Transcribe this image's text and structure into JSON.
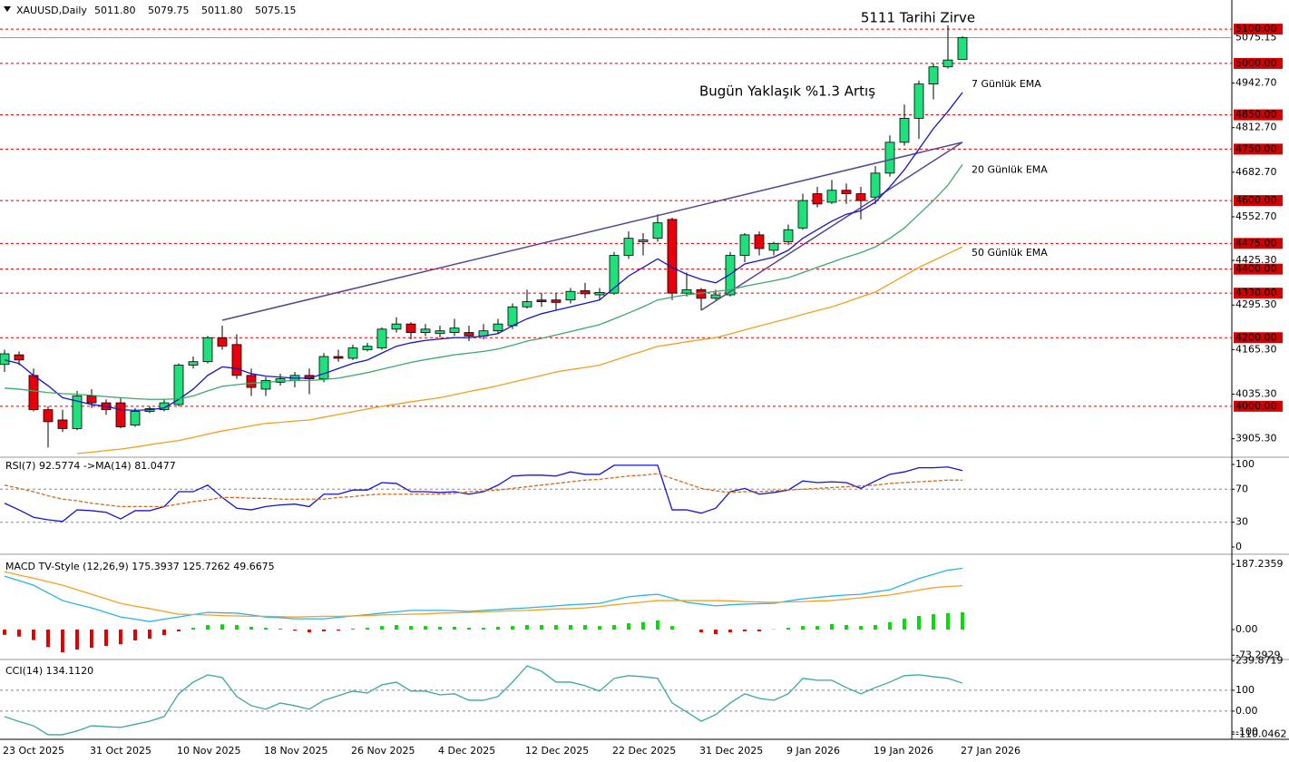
{
  "chart_data": [
    {
      "type": "candlestick",
      "title": "XAUUSD,Daily",
      "quote": [
        "5011.80",
        "5079.75",
        "5011.80",
        "5075.15"
      ],
      "categories": [
        "23 Oct 2025",
        null,
        null,
        null,
        null,
        null,
        "31 Oct 2025",
        null,
        null,
        null,
        null,
        null,
        "10 Nov 2025",
        null,
        null,
        null,
        null,
        null,
        "18 Nov 2025",
        null,
        null,
        null,
        null,
        null,
        "26 Nov 2025",
        null,
        null,
        null,
        null,
        null,
        "4 Dec 2025",
        null,
        null,
        null,
        null,
        null,
        "12 Dec 2025",
        null,
        null,
        null,
        null,
        null,
        "22 Dec 2025",
        null,
        null,
        null,
        null,
        null,
        "31 Dec 2025",
        null,
        null,
        null,
        null,
        null,
        "9 Jan 2026",
        null,
        null,
        null,
        null,
        null,
        "19 Jan 2026",
        null,
        null,
        null,
        null,
        null,
        "27 Jan 2026"
      ],
      "open": [
        4122,
        4150,
        4090,
        3990,
        3960,
        3935,
        4030,
        4010,
        4010,
        3945,
        3985,
        3990,
        4005,
        4120,
        4130,
        4200,
        4180,
        4090,
        4050,
        4070,
        4075,
        4090,
        4080,
        4145,
        4140,
        4165,
        4170,
        4225,
        4240,
        4215,
        4212,
        4215,
        4215,
        4205,
        4220,
        4235,
        4290,
        4310,
        4310,
        4310,
        4337,
        4325,
        4330,
        4440,
        4480,
        4490,
        4545,
        4330,
        4340,
        4315,
        4325,
        4440,
        4500,
        4455,
        4480,
        4520,
        4620,
        4595,
        4630,
        4620,
        4610,
        4680,
        4770,
        4840,
        4940,
        4990,
        5011.8
      ],
      "high": [
        4165,
        4160,
        4110,
        4000,
        3990,
        4045,
        4050,
        4020,
        4025,
        3995,
        4000,
        4020,
        4125,
        4145,
        4205,
        4235,
        4210,
        4110,
        4085,
        4095,
        4100,
        4110,
        4155,
        4165,
        4180,
        4185,
        4230,
        4260,
        4245,
        4240,
        4235,
        4255,
        4235,
        4240,
        4255,
        4300,
        4340,
        4330,
        4330,
        4345,
        4360,
        4345,
        4450,
        4510,
        4505,
        4560,
        4550,
        4390,
        4345,
        4340,
        4450,
        4505,
        4510,
        4480,
        4530,
        4620,
        4640,
        4660,
        4650,
        4640,
        4700,
        4790,
        4880,
        4950,
        5000,
        5111,
        5079.75
      ],
      "low": [
        4100,
        4120,
        3985,
        3880,
        3925,
        3930,
        3995,
        3975,
        3935,
        3940,
        3980,
        3985,
        4000,
        4110,
        4125,
        4165,
        4080,
        4030,
        4030,
        4060,
        4055,
        4035,
        4070,
        4130,
        4135,
        4160,
        4165,
        4215,
        4195,
        4205,
        4200,
        4205,
        4190,
        4195,
        4210,
        4225,
        4285,
        4290,
        4280,
        4300,
        4315,
        4310,
        4325,
        4430,
        4440,
        4480,
        4310,
        4320,
        4280,
        4310,
        4320,
        4420,
        4440,
        4440,
        4470,
        4515,
        4580,
        4590,
        4590,
        4545,
        4590,
        4670,
        4760,
        4780,
        4895,
        4985,
        5011.8
      ],
      "close": [
        4153,
        4135,
        3990,
        3955,
        3935,
        4030,
        4010,
        3990,
        3940,
        3985,
        3993,
        4010,
        4120,
        4130,
        4200,
        4175,
        4090,
        4055,
        4075,
        4080,
        4090,
        4080,
        4145,
        4140,
        4170,
        4175,
        4225,
        4240,
        4215,
        4225,
        4220,
        4228,
        4205,
        4220,
        4240,
        4290,
        4305,
        4305,
        4303,
        4335,
        4328,
        4332,
        4440,
        4490,
        4485,
        4535,
        4330,
        4340,
        4315,
        4325,
        4440,
        4500,
        4460,
        4475,
        4515,
        4600,
        4590,
        4630,
        4620,
        4600,
        4680,
        4770,
        4840,
        4940,
        4990,
        5010,
        5075.15
      ],
      "up_color": "#1fe07a",
      "down_color": "#e8000b",
      "series": [
        {
          "name": "7 Günlük EMA",
          "color": "#1414c8",
          "values": [
            4135,
            4125,
            4090,
            4060,
            4025,
            4015,
            4005,
            4000,
            3990,
            3988,
            3990,
            3995,
            4020,
            4050,
            4090,
            4115,
            4110,
            4095,
            4088,
            4085,
            4082,
            4082,
            4095,
            4110,
            4125,
            4135,
            4155,
            4175,
            4185,
            4192,
            4196,
            4200,
            4200,
            4205,
            4212,
            4235,
            4255,
            4270,
            4280,
            4290,
            4300,
            4310,
            4345,
            4380,
            4405,
            4430,
            4405,
            4385,
            4370,
            4360,
            4385,
            4415,
            4425,
            4435,
            4455,
            4490,
            4515,
            4540,
            4560,
            4570,
            4595,
            4640,
            4690,
            4750,
            4810,
            4860,
            4915
          ]
        },
        {
          "name": "20 Günlük EMA",
          "color": "#3ea86a",
          "values": [
            4053,
            4050,
            4045,
            4040,
            4037,
            4035,
            4032,
            4028,
            4025,
            4022,
            4020,
            4020,
            4022,
            4030,
            4045,
            4058,
            4063,
            4067,
            4070,
            4073,
            4075,
            4075,
            4078,
            4082,
            4090,
            4098,
            4108,
            4118,
            4128,
            4136,
            4143,
            4150,
            4155,
            4160,
            4167,
            4178,
            4190,
            4198,
            4208,
            4218,
            4228,
            4238,
            4255,
            4272,
            4290,
            4310,
            4318,
            4325,
            4330,
            4335,
            4340,
            4350,
            4358,
            4366,
            4375,
            4390,
            4405,
            4420,
            4435,
            4448,
            4465,
            4490,
            4520,
            4560,
            4600,
            4645,
            4705
          ]
        },
        {
          "name": "50 Günlük EMA",
          "color": "#f0a020",
          "values": [
            null,
            null,
            null,
            null,
            null,
            3862,
            3866,
            3871,
            3875,
            3881,
            3888,
            3894,
            3900,
            3909,
            3919,
            3928,
            3935,
            3943,
            3950,
            3953,
            3957,
            3960,
            3968,
            3976,
            3984,
            3992,
            4000,
            4006,
            4013,
            4019,
            4025,
            4034,
            4043,
            4051,
            4060,
            4070,
            4080,
            4090,
            4100,
            4107,
            4113,
            4120,
            4134,
            4148,
            4161,
            4175,
            4181,
            4188,
            4194,
            4200,
            4211,
            4223,
            4234,
            4245,
            4256,
            4268,
            4279,
            4290,
            4304,
            4319,
            4333,
            4357,
            4381,
            4405,
            4425,
            4445,
            4465
          ]
        }
      ],
      "trendlines": [
        {
          "x": [
            15,
            66
          ],
          "y": [
            4251,
            4770
          ]
        },
        {
          "x": [
            48,
            66
          ],
          "y": [
            4280,
            4770
          ]
        }
      ],
      "trendline_color": "#5a4590",
      "annotations": [
        "5111 Tarihi Zirve",
        "Bugün Yaklaşık %1.3 Artış"
      ],
      "annotation_color": "#a3262a",
      "levels": [
        {
          "value": 5100,
          "label": "5100.00"
        },
        {
          "value": 5000,
          "label": "5000.00"
        },
        {
          "value": 4850,
          "label": "4850.00"
        },
        {
          "value": 4750,
          "label": "4750.00"
        },
        {
          "value": 4600,
          "label": "4600.00"
        },
        {
          "value": 4475,
          "label": "4475.00"
        },
        {
          "value": 4400,
          "label": "4400.00"
        },
        {
          "value": 4330,
          "label": "4330.00"
        },
        {
          "value": 4200,
          "label": "4200.00"
        },
        {
          "value": 4000,
          "label": "4000.00"
        }
      ],
      "level_color": "#d40000",
      "last_price": {
        "value": 5075.15,
        "label": "5075.15"
      },
      "ylim": [
        3862,
        5185
      ],
      "yticks": [
        {
          "value": 4942.7,
          "label": "4942.70"
        },
        {
          "value": 4812.7,
          "label": "4812.70"
        },
        {
          "value": 4682.7,
          "label": "4682.70"
        },
        {
          "value": 4552.7,
          "label": "4552.70"
        },
        {
          "value": 4425.3,
          "label": "4425.30"
        },
        {
          "value": 4295.3,
          "label": "4295.30"
        },
        {
          "value": 4165.3,
          "label": "4165.30"
        },
        {
          "value": 4035.3,
          "label": "4035.30"
        },
        {
          "value": 3905.3,
          "label": "3905.30"
        }
      ]
    },
    {
      "type": "line",
      "title": "RSI(7) 92.5774 ->MA(14) 81.0477",
      "ylim": [
        0,
        100
      ],
      "yticks": [
        100,
        70,
        30,
        0
      ],
      "levels": [
        70,
        30
      ],
      "series": [
        {
          "name": "RSI(7)",
          "color": "#1414d0",
          "values": [
            53,
            45,
            36,
            33,
            31,
            45,
            44,
            42,
            34,
            44,
            44,
            49,
            67,
            67,
            75,
            60,
            47,
            45,
            49,
            51,
            52,
            49,
            64,
            64,
            69,
            69,
            78,
            77,
            67,
            67,
            66,
            67,
            64,
            67,
            75,
            86,
            87,
            87,
            86,
            91,
            88,
            88,
            99,
            99,
            99,
            99,
            45,
            45,
            41,
            47,
            67,
            71,
            64,
            66,
            69,
            80,
            78,
            79,
            78,
            71,
            80,
            88,
            91,
            96,
            96,
            97,
            92.5774
          ]
        },
        {
          "name": "MA(14)",
          "color": "#d2691e",
          "dash": true,
          "values": [
            75,
            71,
            67,
            62,
            58,
            56,
            53,
            51,
            49,
            49,
            49,
            49,
            52,
            55,
            57,
            60,
            60,
            59,
            59,
            58,
            58,
            58,
            58,
            60,
            61,
            63,
            64,
            64,
            64,
            64,
            64,
            65,
            67,
            68,
            69,
            71,
            73,
            75,
            77,
            79,
            81,
            82,
            84,
            86,
            87,
            89,
            83,
            77,
            71,
            68,
            66,
            67,
            67,
            68,
            69,
            70,
            71,
            72,
            73,
            74,
            75,
            77,
            78,
            79,
            80,
            81,
            81.0477
          ]
        }
      ]
    },
    {
      "type": "macd",
      "title": "MACD TV-Style (12,26,9) 175.3937 125.7262 49.6675",
      "ylim": [
        -83,
        213
      ],
      "yticks": [
        187.2359,
        {
          "value": 0,
          "label": "0.00"
        },
        -73.2929
      ],
      "histogram": {
        "up_color": "#00e000",
        "down_color": "#e00000",
        "values": [
          -15,
          -20,
          -30,
          -50,
          -65,
          -57,
          -52,
          -47,
          -42,
          -31,
          -26,
          -16,
          -5,
          5,
          13,
          15,
          13,
          8,
          5,
          3,
          -3,
          -8,
          -5,
          -3,
          3,
          5,
          10,
          13,
          10,
          10,
          8,
          8,
          5,
          5,
          8,
          10,
          13,
          13,
          13,
          13,
          13,
          10,
          13,
          18,
          21,
          26,
          10,
          0,
          -8,
          -13,
          -8,
          -5,
          -5,
          1,
          5,
          10,
          10,
          16,
          13,
          10,
          13,
          21,
          31,
          39,
          44,
          47,
          49.6675
        ]
      },
      "series": [
        {
          "name": "MACD",
          "color": "#2ab4ea",
          "values": [
            153,
            140,
            127,
            105,
            83,
            72,
            62,
            49,
            36,
            30,
            23,
            30,
            36,
            43,
            49,
            48,
            47,
            42,
            36,
            34,
            31,
            31,
            31,
            35,
            39,
            43,
            47,
            51,
            55,
            55,
            55,
            54,
            52,
            55,
            57,
            60,
            62,
            65,
            68,
            71,
            73,
            75,
            85,
            94,
            98,
            101,
            90,
            78,
            73,
            68,
            71,
            73,
            74,
            75,
            82,
            88,
            92,
            96,
            99,
            101,
            108,
            114,
            130,
            146,
            158,
            170,
            175.3937
          ]
        },
        {
          "name": "Signal",
          "color": "#f5a020",
          "values": [
            166,
            156,
            147,
            137,
            127,
            114,
            101,
            88,
            75,
            67,
            60,
            52,
            44,
            43,
            42,
            40,
            39,
            38,
            38,
            37,
            36,
            37,
            38,
            38,
            39,
            40,
            42,
            43,
            44,
            45,
            47,
            48,
            49,
            51,
            52,
            54,
            55,
            57,
            59,
            60,
            62,
            66,
            71,
            75,
            79,
            83,
            83,
            83,
            83,
            83,
            82,
            80,
            79,
            78,
            79,
            80,
            82,
            83,
            87,
            91,
            95,
            99,
            106,
            113,
            120,
            123,
            125.7262
          ]
        }
      ]
    },
    {
      "type": "line",
      "title": "CCI(14) 134.1120",
      "ylim": [
        -135,
        243
      ],
      "yticks": [
        239.8719,
        100,
        {
          "value": 0,
          "label": "0.00"
        },
        -100,
        -110.0462
      ],
      "levels": [
        100,
        0
      ],
      "series": [
        {
          "name": "CCI(14)",
          "color": "#3aa8a0",
          "values": [
            -26,
            -50,
            -70,
            -113,
            -113,
            -95,
            -70,
            -74,
            -78,
            -63,
            -48,
            -26,
            83,
            139,
            174,
            161,
            70,
            26,
            9,
            39,
            26,
            9,
            52,
            74,
            96,
            87,
            126,
            139,
            96,
            96,
            78,
            83,
            52,
            52,
            70,
            139,
            217,
            191,
            139,
            139,
            122,
            96,
            157,
            170,
            165,
            157,
            39,
            -4,
            -48,
            -17,
            39,
            83,
            61,
            52,
            83,
            157,
            148,
            148,
            113,
            83,
            113,
            139,
            170,
            174,
            165,
            157,
            134.112
          ]
        }
      ]
    }
  ]
}
